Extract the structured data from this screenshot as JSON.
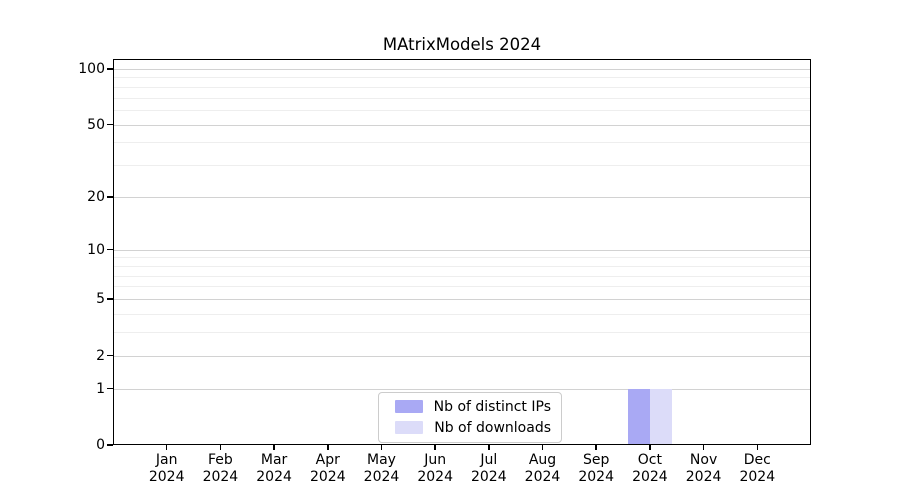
{
  "chart_data": {
    "type": "bar",
    "title": "MAtrixModels 2024",
    "x": {
      "months": [
        "Jan",
        "Feb",
        "Mar",
        "Apr",
        "May",
        "Jun",
        "Jul",
        "Aug",
        "Sep",
        "Oct",
        "Nov",
        "Dec"
      ],
      "year": "2024"
    },
    "series": [
      {
        "name": "Nb of distinct IPs",
        "color": "#a9a9f4",
        "values": [
          0,
          0,
          0,
          0,
          0,
          0,
          0,
          0,
          0,
          1,
          0,
          0
        ]
      },
      {
        "name": "Nb of downloads",
        "color": "#dcdcf9",
        "values": [
          0,
          0,
          0,
          0,
          0,
          0,
          0,
          0,
          0,
          1,
          0,
          0
        ]
      }
    ],
    "y_axis": {
      "scale": "log1p",
      "major_ticks": [
        0,
        1,
        2,
        5,
        10,
        20,
        50,
        100
      ],
      "minor_gridlines": [
        3,
        4,
        6,
        7,
        8,
        9,
        30,
        40,
        60,
        70,
        80,
        90
      ],
      "ylim": [
        0,
        113
      ]
    },
    "legend": {
      "position": "lower center"
    },
    "grid": "horizontal"
  }
}
